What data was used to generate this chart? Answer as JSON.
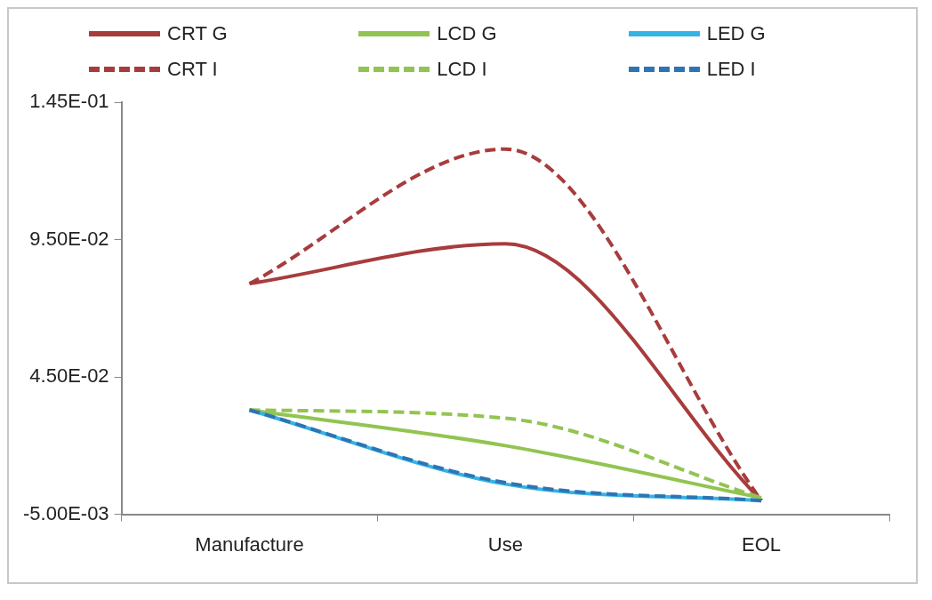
{
  "chart_data": {
    "type": "line",
    "categories": [
      "Manufacture",
      "Use",
      "EOL"
    ],
    "series": [
      {
        "name": "CRT G",
        "color": "#a83c3c",
        "line_style": "solid",
        "values": [
          0.079,
          0.0935,
          0.0
        ]
      },
      {
        "name": "LCD G",
        "color": "#92c451",
        "line_style": "solid",
        "values": [
          0.033,
          0.02,
          0.001
        ]
      },
      {
        "name": "LED G",
        "color": "#34b4e4",
        "line_style": "solid",
        "values": [
          0.033,
          0.006,
          0.0
        ]
      },
      {
        "name": "CRT I",
        "color": "#a83c3c",
        "line_style": "dashed",
        "values": [
          0.079,
          0.128,
          0.0
        ]
      },
      {
        "name": "LCD I",
        "color": "#92c451",
        "line_style": "dashed",
        "values": [
          0.033,
          0.03,
          0.001
        ]
      },
      {
        "name": "LED I",
        "color": "#2e74b5",
        "line_style": "dashed",
        "values": [
          0.033,
          0.0065,
          0.0
        ]
      }
    ],
    "ylim": [
      -0.005,
      0.145
    ],
    "yticks": [
      {
        "value": -0.005,
        "label": "-5.00E-03"
      },
      {
        "value": 0.045,
        "label": "4.50E-02"
      },
      {
        "value": 0.095,
        "label": "9.50E-02"
      },
      {
        "value": 0.145,
        "label": "1.45E-01"
      }
    ],
    "grid": false,
    "legend": "top",
    "marker": "none"
  }
}
